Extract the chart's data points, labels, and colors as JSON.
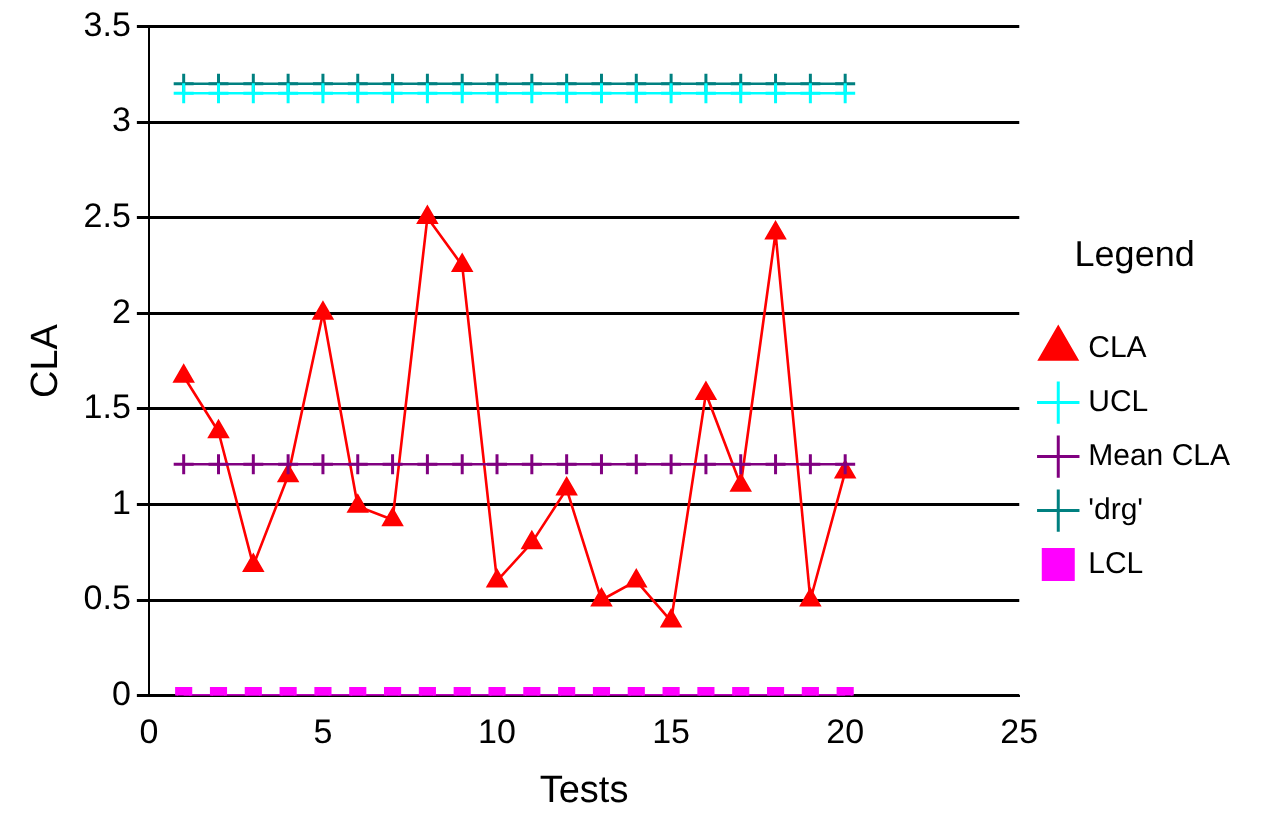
{
  "chart_data": {
    "type": "line",
    "xlabel": "Tests",
    "ylabel": "CLA",
    "legend_title": "Legend",
    "legend": "right",
    "grid": "y",
    "x": [
      1,
      2,
      3,
      4,
      5,
      6,
      7,
      8,
      9,
      10,
      11,
      12,
      13,
      14,
      15,
      16,
      17,
      18,
      19,
      20
    ],
    "xlim": [
      0,
      25
    ],
    "xticks": [
      0,
      5,
      10,
      15,
      20,
      25
    ],
    "ylim": [
      0,
      3.5
    ],
    "yticks": [
      0,
      0.5,
      1,
      1.5,
      2,
      2.5,
      3,
      3.5
    ],
    "series": [
      {
        "name": "CLA",
        "color": "#ff0000",
        "marker": "triangle",
        "values": [
          1.67,
          1.38,
          0.68,
          1.15,
          2.0,
          0.99,
          0.92,
          2.5,
          2.25,
          0.6,
          0.8,
          1.08,
          0.5,
          0.6,
          0.39,
          1.58,
          1.1,
          2.42,
          0.5,
          1.17
        ]
      },
      {
        "name": "UCL",
        "color": "#00ffff",
        "marker": "cross",
        "values": [
          3.15,
          3.15,
          3.15,
          3.15,
          3.15,
          3.15,
          3.15,
          3.15,
          3.15,
          3.15,
          3.15,
          3.15,
          3.15,
          3.15,
          3.15,
          3.15,
          3.15,
          3.15,
          3.15,
          3.15
        ]
      },
      {
        "name": "Mean CLA",
        "color": "#800080",
        "marker": "cross",
        "values": [
          1.21,
          1.21,
          1.21,
          1.21,
          1.21,
          1.21,
          1.21,
          1.21,
          1.21,
          1.21,
          1.21,
          1.21,
          1.21,
          1.21,
          1.21,
          1.21,
          1.21,
          1.21,
          1.21,
          1.21
        ]
      },
      {
        "name": "'drg'",
        "color": "#008080",
        "marker": "cross",
        "values": [
          3.2,
          3.2,
          3.2,
          3.2,
          3.2,
          3.2,
          3.2,
          3.2,
          3.2,
          3.2,
          3.2,
          3.2,
          3.2,
          3.2,
          3.2,
          3.2,
          3.2,
          3.2,
          3.2,
          3.2
        ]
      },
      {
        "name": "LCL",
        "color": "#ff00ff",
        "marker": "square",
        "values": [
          0,
          0,
          0,
          0,
          0,
          0,
          0,
          0,
          0,
          0,
          0,
          0,
          0,
          0,
          0,
          0,
          0,
          0,
          0,
          0
        ]
      }
    ]
  }
}
